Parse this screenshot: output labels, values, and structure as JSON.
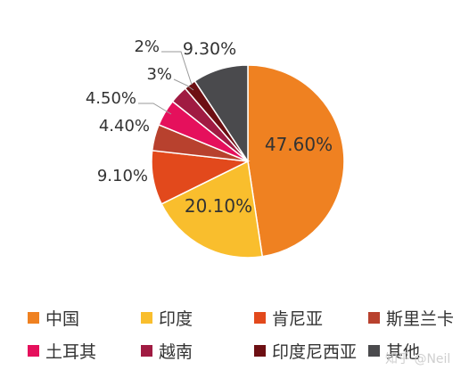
{
  "chart_data": {
    "type": "pie",
    "title": "",
    "slices": [
      {
        "name": "中国",
        "value": 47.6,
        "label": "47.60%",
        "color": "#EF8121"
      },
      {
        "name": "印度",
        "value": 20.1,
        "label": "20.10%",
        "color": "#F9BE2D"
      },
      {
        "name": "肯尼亚",
        "value": 9.1,
        "label": "9.10%",
        "color": "#E2491C"
      },
      {
        "name": "斯里兰卡",
        "value": 4.4,
        "label": "4.40%",
        "color": "#B8412E"
      },
      {
        "name": "土耳其",
        "value": 4.5,
        "label": "4.50%",
        "color": "#E5105C"
      },
      {
        "name": "越南",
        "value": 3,
        "label": "3%",
        "color": "#A01B42"
      },
      {
        "name": "印度尼西亚",
        "value": 2,
        "label": "2%",
        "color": "#6D0F13"
      },
      {
        "name": "其他",
        "value": 9.3,
        "label": "9.30%",
        "color": "#4A4A4D"
      }
    ],
    "legend_position": "bottom"
  },
  "watermark": "知乎 @Neil"
}
